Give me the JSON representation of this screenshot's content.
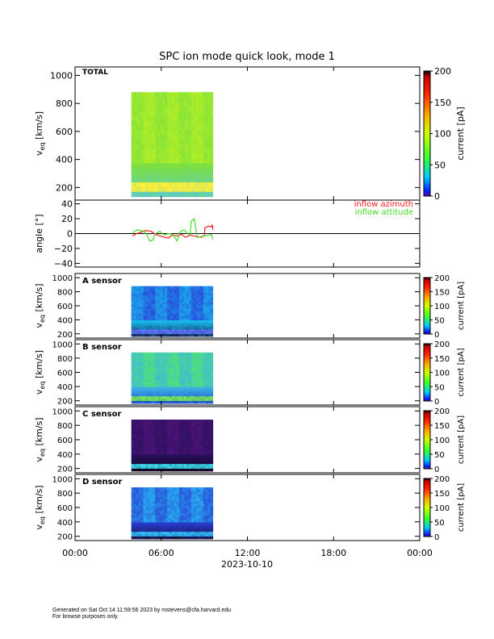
{
  "chart_data": {
    "type": "heatmap",
    "title": "SPC ion mode quick look, mode 1",
    "date_label": "2023-10-10",
    "x_ticks": [
      "00:00",
      "06:00",
      "12:00",
      "18:00",
      "00:00"
    ],
    "data_coverage": {
      "start": "03:55",
      "end": "09:35"
    },
    "panels": [
      {
        "id": "total",
        "label": "TOTAL",
        "ylabel": "v_eq [km/s]",
        "y_ticks": [
          "1000",
          "800",
          "600",
          "400",
          "200"
        ],
        "ylim": [
          110,
          1060
        ],
        "colorbar": {
          "label": "current [pA]",
          "ticks": [
            "200",
            "150",
            "100",
            "50",
            "0"
          ],
          "range": [
            0,
            200
          ]
        },
        "scheme": "green"
      },
      {
        "id": "angle",
        "ylabel": "angle [°]",
        "y_ticks": [
          "40",
          "20",
          "0",
          "−20",
          "−40"
        ],
        "ylim": [
          -45,
          45
        ],
        "series": [
          {
            "name": "inflow azimuth",
            "color": "#ff1a1a",
            "points": [
              [
                4.0,
                -3
              ],
              [
                4.3,
                0
              ],
              [
                4.6,
                2
              ],
              [
                4.9,
                4
              ],
              [
                5.3,
                3
              ],
              [
                5.6,
                -1
              ],
              [
                5.9,
                -3
              ],
              [
                6.2,
                -5
              ],
              [
                6.5,
                -6
              ],
              [
                6.8,
                -2
              ],
              [
                7.1,
                -3
              ],
              [
                7.4,
                -1
              ],
              [
                7.7,
                -5
              ],
              [
                8.0,
                -2
              ],
              [
                8.2,
                -3
              ],
              [
                8.5,
                -4
              ],
              [
                8.8,
                -5
              ],
              [
                9.0,
                -3
              ],
              [
                9.05,
                8
              ],
              [
                9.3,
                10
              ],
              [
                9.5,
                9
              ],
              [
                9.55,
                12
              ],
              [
                9.6,
                5
              ]
            ]
          },
          {
            "name": "inflow attitude",
            "color": "#44dd22",
            "points": [
              [
                4.0,
                1
              ],
              [
                4.3,
                5
              ],
              [
                4.6,
                4
              ],
              [
                4.8,
                3
              ],
              [
                5.0,
                -2
              ],
              [
                5.2,
                -10
              ],
              [
                5.4,
                -9
              ],
              [
                5.6,
                0
              ],
              [
                5.9,
                3
              ],
              [
                6.2,
                -2
              ],
              [
                6.5,
                0
              ],
              [
                6.8,
                -1
              ],
              [
                7.1,
                -10
              ],
              [
                7.3,
                2
              ],
              [
                7.6,
                5
              ],
              [
                7.9,
                -1
              ],
              [
                8.0,
                -2
              ],
              [
                8.1,
                17
              ],
              [
                8.3,
                20
              ],
              [
                8.5,
                -5
              ],
              [
                8.8,
                -4
              ],
              [
                9.1,
                -3
              ],
              [
                9.3,
                -2
              ],
              [
                9.5,
                -1
              ],
              [
                9.6,
                -8
              ]
            ]
          }
        ]
      },
      {
        "id": "a",
        "label": "A sensor",
        "ylabel": "v_eq [km/s]",
        "y_ticks": [
          "1000",
          "800",
          "600",
          "400",
          "200"
        ],
        "ylim": [
          140,
          1060
        ],
        "colorbar": {
          "label": "current [pA]",
          "ticks": [
            "200",
            "150",
            "100",
            "50",
            "0"
          ],
          "range": [
            0,
            200
          ]
        },
        "scheme": "blue"
      },
      {
        "id": "b",
        "label": "B sensor",
        "ylabel": "v_eq [km/s]",
        "y_ticks": [
          "1000",
          "800",
          "600",
          "400",
          "200"
        ],
        "ylim": [
          140,
          1060
        ],
        "colorbar": {
          "label": "current [pA]",
          "ticks": [
            "200",
            "150",
            "100",
            "50",
            "0"
          ],
          "range": [
            0,
            200
          ]
        },
        "scheme": "bgreen"
      },
      {
        "id": "c",
        "label": "C sensor",
        "ylabel": "v_eq [km/s]",
        "y_ticks": [
          "1000",
          "800",
          "600",
          "400",
          "200"
        ],
        "ylim": [
          140,
          1060
        ],
        "colorbar": {
          "label": "current [pA]",
          "ticks": [
            "200",
            "150",
            "100",
            "50",
            "0"
          ],
          "range": [
            0,
            200
          ]
        },
        "scheme": "purple"
      },
      {
        "id": "d",
        "label": "D sensor",
        "ylabel": "v_eq [km/s]",
        "y_ticks": [
          "1000",
          "800",
          "600",
          "400",
          "200"
        ],
        "ylim": [
          140,
          1060
        ],
        "colorbar": {
          "label": "current [pA]",
          "ticks": [
            "200",
            "150",
            "100",
            "50",
            "0"
          ],
          "range": [
            0,
            200
          ]
        },
        "scheme": "dblue"
      }
    ]
  },
  "footer": {
    "line1": "Generated on Sat Oct 14 11:59:56 2023 by mstevens@cfa.harvard.edu",
    "line2": "For browse purposes only."
  }
}
